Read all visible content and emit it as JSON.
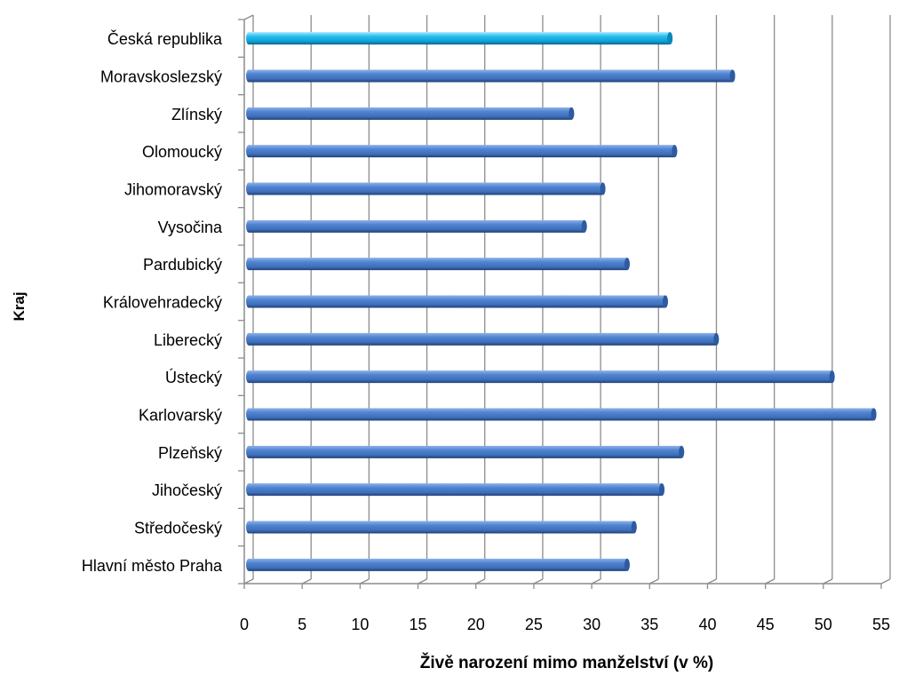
{
  "chart_data": {
    "type": "bar",
    "orientation": "horizontal",
    "style": "3d-cylinder",
    "categories": [
      "Česká republika",
      "Moravskoslezský",
      "Zlínský",
      "Olomoucký",
      "Jihomoravský",
      "Vysočina",
      "Pardubický",
      "Královehradecký",
      "Liberecký",
      "Ústecký",
      "Karlovarský",
      "Plzeňský",
      "Jihočeský",
      "Středočeský",
      "Hlavní město Praha"
    ],
    "values": [
      36.6,
      42.0,
      28.1,
      37.0,
      30.8,
      29.2,
      32.9,
      36.2,
      40.6,
      50.6,
      54.2,
      37.6,
      35.9,
      33.5,
      32.9
    ],
    "highlight_category": "Česká republika",
    "colors": {
      "bar": "#4a7fcd",
      "highlight": "#1fb4e6",
      "grid": "#8c8c8c"
    },
    "xlabel": "Živě narození mimo manželství (v %)",
    "ylabel": "Kraj",
    "xlim": [
      0,
      55
    ],
    "xticks": [
      "0",
      "5",
      "10",
      "15",
      "20",
      "25",
      "30",
      "35",
      "40",
      "45",
      "50",
      "55"
    ],
    "grid": true,
    "legend": "none"
  }
}
